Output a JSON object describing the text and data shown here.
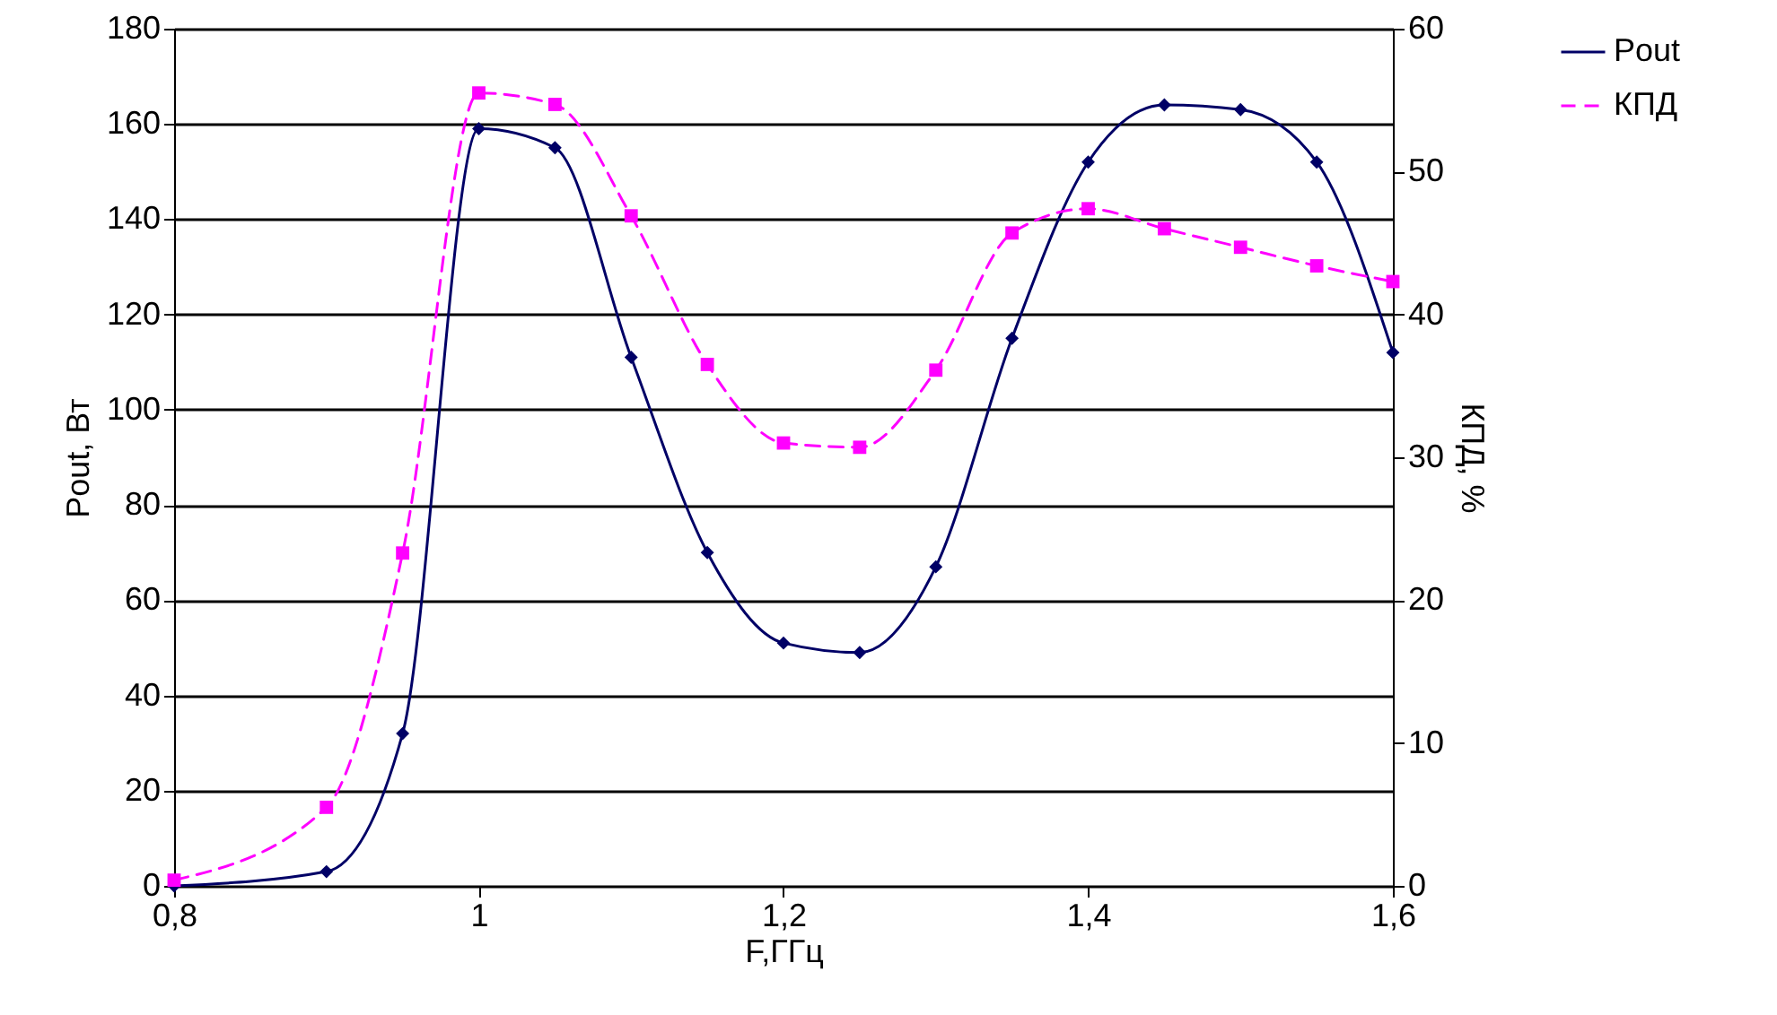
{
  "chart_data": {
    "type": "line",
    "xlabel": "F,ГГц",
    "ylabel": "Pout, Вт",
    "y2label": "КПД, %",
    "x": [
      0.8,
      0.9,
      0.95,
      1.0,
      1.05,
      1.1,
      1.15,
      1.2,
      1.25,
      1.3,
      1.35,
      1.4,
      1.45,
      1.5,
      1.55,
      1.6
    ],
    "series": [
      {
        "name": "Pout",
        "color": "#000066",
        "marker": "diamond",
        "line_style": "solid",
        "values": [
          0,
          3,
          32,
          159,
          155,
          111,
          70,
          51,
          49,
          67,
          115,
          152,
          164,
          163,
          152,
          112
        ]
      },
      {
        "name": "КПД",
        "color": "#ff00ff",
        "marker": "square",
        "line_style": "dashed",
        "axis": "y2",
        "values": [
          0.4,
          5.5,
          23.3,
          55.5,
          54.7,
          46.9,
          36.5,
          31.0,
          30.7,
          36.1,
          45.7,
          47.4,
          46.0,
          44.7,
          43.4,
          42.3
        ]
      }
    ],
    "xlim": [
      0.8,
      1.6
    ],
    "xticks": [
      {
        "value": 0.8,
        "label": "0,8"
      },
      1,
      {
        "value": 1.2,
        "label": "1,2"
      },
      {
        "value": 1.4,
        "label": "1,4"
      },
      {
        "value": 1.6,
        "label": "1,6"
      }
    ],
    "ylim": [
      0,
      180
    ],
    "yticks": [
      0,
      20,
      40,
      60,
      80,
      100,
      120,
      140,
      160,
      180
    ],
    "y2lim": [
      0,
      60
    ],
    "y2ticks": [
      0,
      10,
      20,
      30,
      40,
      50,
      60
    ],
    "grid": "y",
    "legend": "top right"
  }
}
